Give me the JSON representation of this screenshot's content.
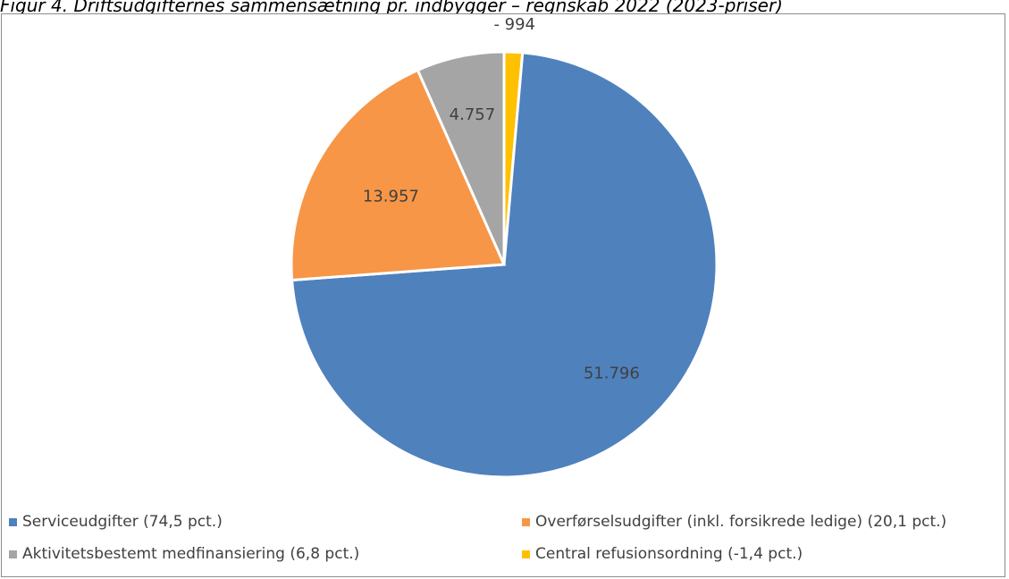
{
  "figure_title": "Figur 4. Driftsudgifternes sammensætning pr. indbygger – regnskab 2022 (2023-priser)",
  "chart_data": {
    "type": "pie",
    "title": "",
    "slices": [
      {
        "name": "Serviceudgifter (74,5 pct.)",
        "value": 51796,
        "label": "51.796",
        "percent": 74.5,
        "color": "#4f81bd"
      },
      {
        "name": "Overførselsudgifter (inkl. forsikrede ledige) (20,1 pct.)",
        "value": 13957,
        "label": "13.957",
        "percent": 20.1,
        "color": "#f79646"
      },
      {
        "name": "Aktivitetsbestemt medfinansiering (6,8 pct.)",
        "value": 4757,
        "label": "4.757",
        "percent": 6.8,
        "color": "#a5a5a5"
      },
      {
        "name": "Central refusionsordning (-1,4 pct.)",
        "value": -994,
        "label": "- 994",
        "percent": -1.4,
        "color": "#ffc000"
      }
    ],
    "legend_position": "bottom"
  }
}
